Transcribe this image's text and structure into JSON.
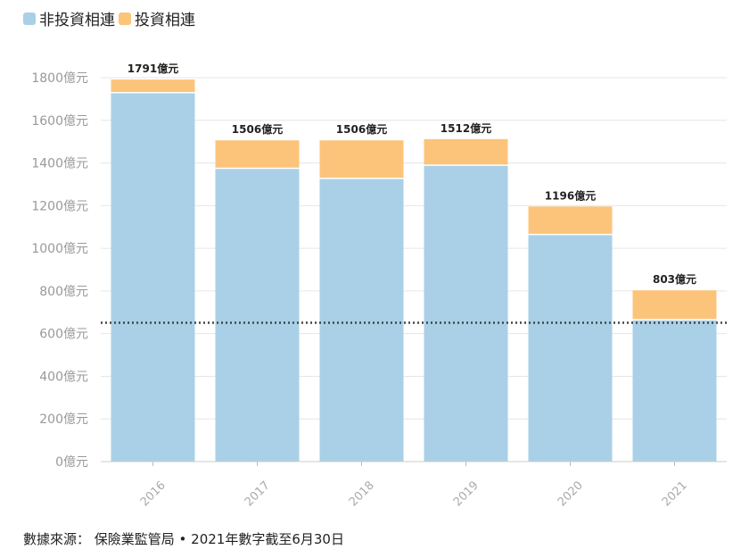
{
  "legend": [
    {
      "label": "非投資相連",
      "color": "#a9d0e6"
    },
    {
      "label": "投資相連",
      "color": "#fcc47a"
    }
  ],
  "source": "數據來源： 保險業監管局 • 2021年數字截至6月30日",
  "chart_data": {
    "type": "bar",
    "stacked": true,
    "categories": [
      "2016",
      "2017",
      "2018",
      "2019",
      "2020",
      "2021"
    ],
    "series": [
      {
        "name": "非投資相連",
        "color": "#a9d0e6",
        "values": [
          1730,
          1375,
          1328,
          1390,
          1065,
          665
        ]
      },
      {
        "name": "投資相連",
        "color": "#fcc47a",
        "values": [
          61,
          131,
          178,
          122,
          131,
          138
        ]
      }
    ],
    "totals": [
      1791,
      1506,
      1506,
      1512,
      1196,
      803
    ],
    "total_labels": [
      "1791億元",
      "1506億元",
      "1506億元",
      "1512億元",
      "1196億元",
      "803億元"
    ],
    "yticks": [
      0,
      200,
      400,
      600,
      800,
      1000,
      1200,
      1400,
      1600,
      1800
    ],
    "ytick_labels": [
      "0億元",
      "200億元",
      "400億元",
      "600億元",
      "800億元",
      "1000億元",
      "1200億元",
      "1400億元",
      "1600億元",
      "1800億元"
    ],
    "ylim": [
      0,
      1800
    ],
    "reference_line": 651,
    "grid": true,
    "legend_position": "top-left"
  }
}
